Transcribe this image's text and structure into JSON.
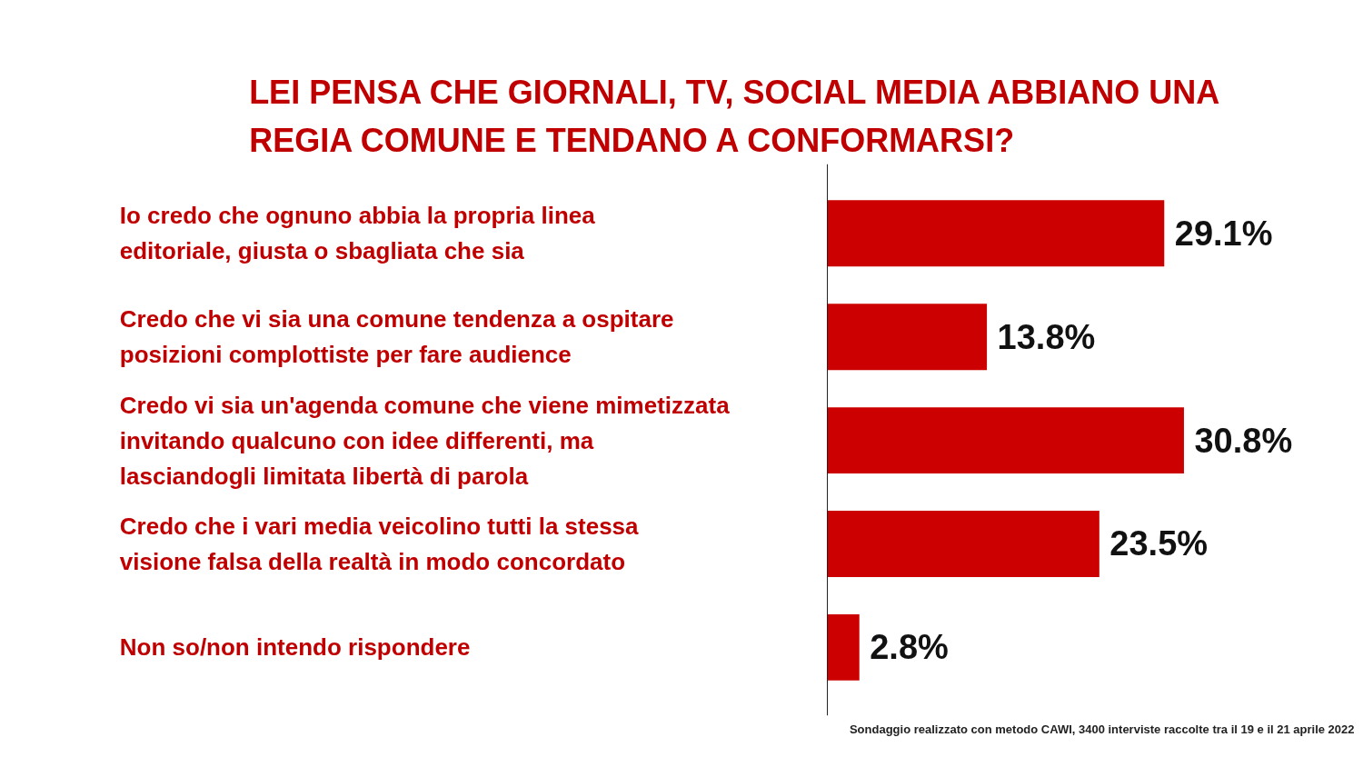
{
  "chart_data": {
    "type": "bar",
    "orientation": "horizontal",
    "title": "LEI PENSA CHE GIORNALI, TV, SOCIAL MEDIA ABBIANO UNA REGIA COMUNE E TENDANO A CONFORMARSI?",
    "categories": [
      "Io credo che ognuno abbia la propria linea editoriale, giusta o sbagliata che sia",
      "Credo che vi sia una comune tendenza a ospitare posizioni complottiste per fare audience",
      "Credo vi sia un'agenda comune che viene mimetizzata invitando qualcuno con idee differenti, ma lasciandogli limitata libertà  di parola",
      "Credo che i vari media veicolino tutti la stessa visione falsa della realtà  in modo concordato",
      "Non so/non intendo rispondere"
    ],
    "values": [
      29.1,
      13.8,
      30.8,
      23.5,
      2.8
    ],
    "value_labels": [
      "29.1%",
      "13.8%",
      "30.8%",
      "23.5%",
      "2.8%"
    ],
    "color": "#cc0000",
    "annotations": [
      "Sondaggio realizzato con metodo CAWI, 3400 interviste raccolte tra il 19 e il 21 aprile 2022"
    ]
  }
}
